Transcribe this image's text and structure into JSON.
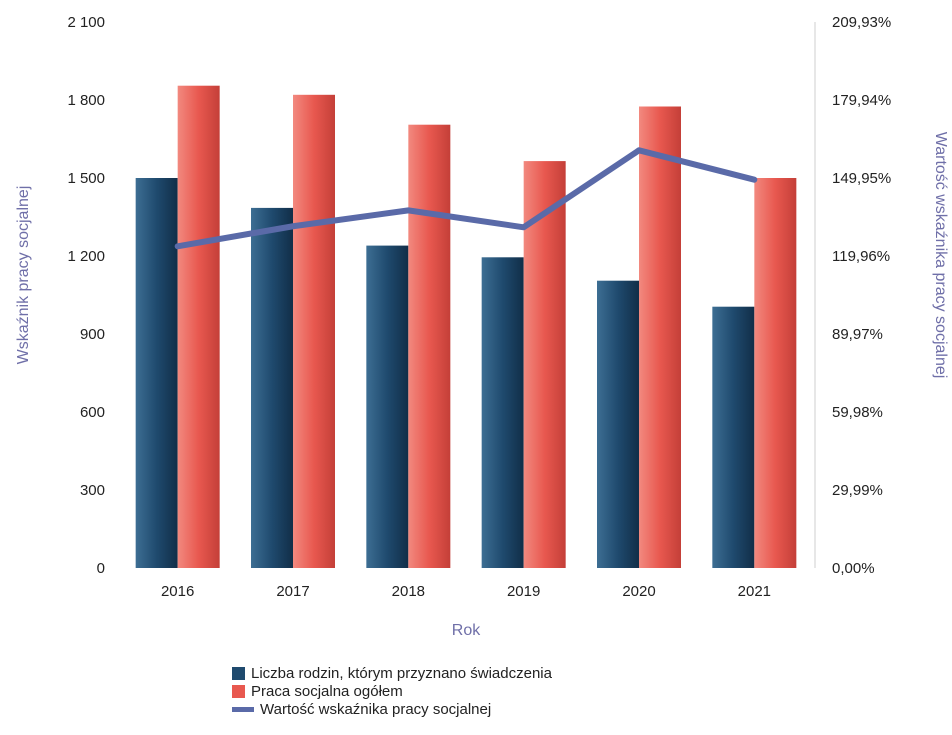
{
  "chart_data": {
    "type": "bar",
    "categories": [
      "2016",
      "2017",
      "2018",
      "2019",
      "2020",
      "2021"
    ],
    "xlabel": "Rok",
    "ylabel": "Wskaźnik pracy socjalnej",
    "ylabel_right": "Wartość wskaźnika pracy socjalnej",
    "ylim": [
      0,
      2100
    ],
    "ylim_right": [
      0,
      209.93
    ],
    "yticks": [
      "0",
      "300",
      "600",
      "900",
      "1 200",
      "1 500",
      "1 800",
      "2 100"
    ],
    "yticks_right": [
      "0,00%",
      "29,99%",
      "59,98%",
      "89,97%",
      "119,96%",
      "149,95%",
      "179,94%",
      "209,93%"
    ],
    "grid": false,
    "legend_position": "bottom",
    "series": [
      {
        "name": "Liczba rodzin, którym przyznano świadczenia",
        "kind": "bar",
        "axis": "left",
        "color": "#1f4a6e",
        "values": [
          1500,
          1385,
          1240,
          1195,
          1105,
          1005
        ]
      },
      {
        "name": "Praca socjalna ogółem",
        "kind": "bar",
        "axis": "left",
        "color": "#e8584f",
        "values": [
          1855,
          1820,
          1705,
          1565,
          1775,
          1500
        ]
      },
      {
        "name": "Wartość wskaźnika pracy socjalnej",
        "kind": "line",
        "axis": "right",
        "color": "#5a6aa8",
        "values": [
          123.7,
          131.4,
          137.5,
          131.0,
          160.6,
          149.3
        ]
      }
    ]
  }
}
